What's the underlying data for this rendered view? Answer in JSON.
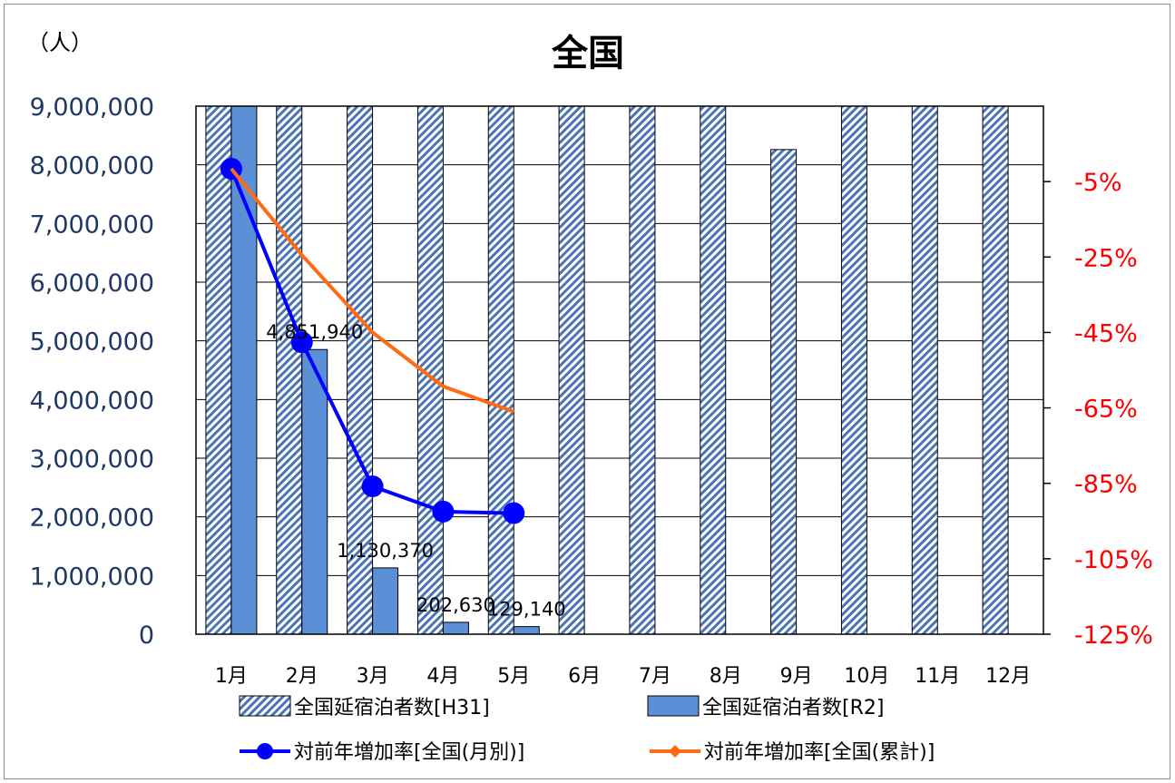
{
  "chart_data": {
    "type": "bar",
    "title": "全国",
    "y_unit_label": "（人）",
    "categories": [
      "1月",
      "2月",
      "3月",
      "4月",
      "5月",
      "6月",
      "7月",
      "8月",
      "9月",
      "10月",
      "11月",
      "12月"
    ],
    "ylim": [
      0,
      9000000
    ],
    "y_ticks": [
      0,
      1000000,
      2000000,
      3000000,
      4000000,
      5000000,
      6000000,
      7000000,
      8000000,
      9000000
    ],
    "y_tick_labels": [
      "0",
      "1,000,000",
      "2,000,000",
      "3,000,000",
      "4,000,000",
      "5,000,000",
      "6,000,000",
      "7,000,000",
      "8,000,000",
      "9,000,000"
    ],
    "y2lim": [
      -125,
      15
    ],
    "y2_ticks": [
      -125,
      -105,
      -85,
      -65,
      -45,
      -25,
      -5
    ],
    "y2_tick_labels": [
      "-125%",
      "-105%",
      "-85%",
      "-65%",
      "-45%",
      "-25%",
      "-5%"
    ],
    "grid": true,
    "legend_position": "bottom",
    "bar_series": [
      {
        "name": "全国延宿泊者数[H31]",
        "style": "hatched",
        "color": "#4a74b4",
        "values": [
          9500000,
          9500000,
          9500000,
          9500000,
          9500000,
          9500000,
          9500000,
          9500000,
          8260000,
          9500000,
          9500000,
          9500000
        ]
      },
      {
        "name": "全国延宿泊者数[R2]",
        "style": "solid",
        "color": "#5b8fd6",
        "values": [
          9500000,
          4851940,
          1130370,
          202630,
          129140,
          null,
          null,
          null,
          null,
          null,
          null,
          null
        ],
        "data_labels": [
          null,
          "4,851,940",
          "1,130,370",
          "202,630",
          "129,140",
          null,
          null,
          null,
          null,
          null,
          null,
          null
        ]
      }
    ],
    "line_series": [
      {
        "name": "対前年増加率[全国(月別)]",
        "axis": "right",
        "color": "#0000ff",
        "marker": "circle",
        "values": [
          -1.6,
          -47.6,
          -85.8,
          -92.5,
          -92.9,
          null,
          null,
          null,
          null,
          null,
          null,
          null
        ]
      },
      {
        "name": "対前年増加率[全国(累計)]",
        "axis": "right",
        "color": "#ff6a13",
        "marker": "diamond",
        "values": [
          -1.6,
          -24.5,
          -45.0,
          -59.3,
          -66.0,
          null,
          null,
          null,
          null,
          null,
          null,
          null
        ]
      }
    ]
  }
}
